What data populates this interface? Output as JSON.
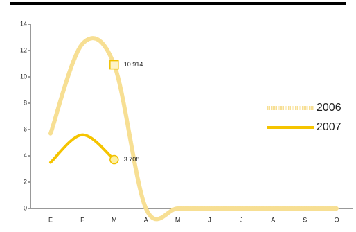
{
  "chart_data": {
    "type": "line",
    "categories": [
      "E",
      "F",
      "M",
      "A",
      "M",
      "J",
      "J",
      "A",
      "S",
      "O"
    ],
    "series": [
      {
        "name": "2006",
        "color": "#f7df93",
        "marker": "square",
        "values": [
          5.7,
          12.5,
          10.914,
          0,
          0,
          0,
          0,
          0,
          0,
          0
        ],
        "value_labels": [
          null,
          null,
          "10.914",
          null,
          null,
          null,
          null,
          null,
          null,
          null
        ]
      },
      {
        "name": "2007",
        "color": "#f5c400",
        "marker": "circle",
        "values": [
          3.5,
          5.6,
          3.708,
          null,
          null,
          null,
          null,
          null,
          null,
          null
        ],
        "value_labels": [
          null,
          null,
          "3.708",
          null,
          null,
          null,
          null,
          null,
          null,
          null
        ]
      }
    ],
    "ylim": [
      0,
      14
    ],
    "yticks": [
      0,
      2,
      4,
      6,
      8,
      10,
      12,
      14
    ],
    "legend": "right"
  }
}
